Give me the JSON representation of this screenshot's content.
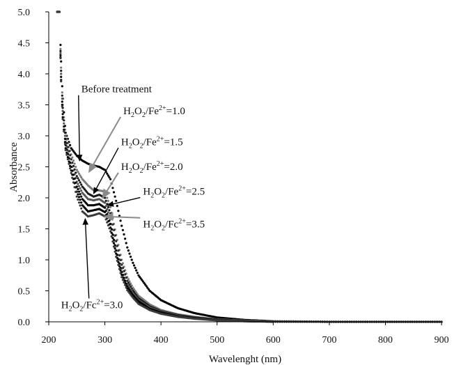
{
  "chart_data": {
    "type": "scatter",
    "title": "",
    "xlabel": "Wavelenght (nm)",
    "ylabel": "Absorbance",
    "xlim": [
      200,
      900
    ],
    "ylim": [
      0,
      5
    ],
    "xticks": [
      200,
      300,
      400,
      500,
      600,
      700,
      800,
      900
    ],
    "yticks": [
      0.0,
      0.5,
      1.0,
      1.5,
      2.0,
      2.5,
      3.0,
      3.5,
      4.0,
      4.5,
      5.0
    ],
    "grid": false,
    "legend": "none",
    "series": [
      {
        "label_ratio": "Before treatment",
        "color": "#000000",
        "points": [
          [
            215,
            5.0
          ],
          [
            219,
            5.0
          ],
          [
            222,
            4.2
          ],
          [
            225,
            3.6
          ],
          [
            230,
            3.05
          ],
          [
            240,
            2.8
          ],
          [
            250,
            2.68
          ],
          [
            260,
            2.6
          ],
          [
            270,
            2.55
          ],
          [
            280,
            2.52
          ],
          [
            290,
            2.5
          ],
          [
            300,
            2.45
          ],
          [
            310,
            2.3
          ],
          [
            320,
            1.95
          ],
          [
            330,
            1.55
          ],
          [
            340,
            1.2
          ],
          [
            350,
            0.95
          ],
          [
            360,
            0.75
          ],
          [
            380,
            0.5
          ],
          [
            400,
            0.35
          ],
          [
            430,
            0.22
          ],
          [
            460,
            0.14
          ],
          [
            500,
            0.07
          ],
          [
            550,
            0.03
          ],
          [
            600,
            0.01
          ],
          [
            700,
            0.0
          ],
          [
            900,
            0.0
          ]
        ]
      },
      {
        "label_ratio": "1.0",
        "color": "#7a7a7a",
        "points": [
          [
            215,
            5.0
          ],
          [
            219,
            5.0
          ],
          [
            222,
            4.1
          ],
          [
            225,
            3.5
          ],
          [
            230,
            3.0
          ],
          [
            240,
            2.7
          ],
          [
            250,
            2.45
          ],
          [
            260,
            2.3
          ],
          [
            270,
            2.2
          ],
          [
            280,
            2.12
          ],
          [
            290,
            2.12
          ],
          [
            300,
            2.1
          ],
          [
            310,
            1.85
          ],
          [
            320,
            1.4
          ],
          [
            330,
            1.0
          ],
          [
            340,
            0.72
          ],
          [
            350,
            0.55
          ],
          [
            360,
            0.42
          ],
          [
            380,
            0.28
          ],
          [
            400,
            0.19
          ],
          [
            430,
            0.12
          ],
          [
            460,
            0.08
          ],
          [
            500,
            0.04
          ],
          [
            550,
            0.02
          ],
          [
            600,
            0.01
          ],
          [
            700,
            0.0
          ],
          [
            900,
            0.0
          ]
        ]
      },
      {
        "label_ratio": "1.5",
        "color": "#1a1a1a",
        "points": [
          [
            215,
            5.0
          ],
          [
            219,
            5.0
          ],
          [
            222,
            4.05
          ],
          [
            225,
            3.45
          ],
          [
            230,
            2.95
          ],
          [
            240,
            2.62
          ],
          [
            250,
            2.35
          ],
          [
            260,
            2.18
          ],
          [
            270,
            2.07
          ],
          [
            280,
            2.02
          ],
          [
            290,
            2.05
          ],
          [
            300,
            2.0
          ],
          [
            310,
            1.75
          ],
          [
            320,
            1.3
          ],
          [
            330,
            0.92
          ],
          [
            340,
            0.66
          ],
          [
            350,
            0.5
          ],
          [
            360,
            0.38
          ],
          [
            380,
            0.25
          ],
          [
            400,
            0.17
          ],
          [
            430,
            0.11
          ],
          [
            460,
            0.07
          ],
          [
            500,
            0.035
          ],
          [
            550,
            0.015
          ],
          [
            600,
            0.005
          ],
          [
            700,
            0.0
          ],
          [
            900,
            0.0
          ]
        ]
      },
      {
        "label_ratio": "2.0",
        "color": "#555555",
        "points": [
          [
            215,
            5.0
          ],
          [
            219,
            5.0
          ],
          [
            222,
            4.0
          ],
          [
            225,
            3.4
          ],
          [
            230,
            2.9
          ],
          [
            240,
            2.56
          ],
          [
            250,
            2.26
          ],
          [
            260,
            2.08
          ],
          [
            270,
            1.98
          ],
          [
            280,
            1.96
          ],
          [
            290,
            1.98
          ],
          [
            300,
            1.92
          ],
          [
            310,
            1.66
          ],
          [
            320,
            1.22
          ],
          [
            330,
            0.86
          ],
          [
            340,
            0.61
          ],
          [
            350,
            0.46
          ],
          [
            360,
            0.35
          ],
          [
            380,
            0.23
          ],
          [
            400,
            0.16
          ],
          [
            430,
            0.1
          ],
          [
            460,
            0.065
          ],
          [
            500,
            0.03
          ],
          [
            550,
            0.013
          ],
          [
            600,
            0.004
          ],
          [
            700,
            0.0
          ],
          [
            900,
            0.0
          ]
        ]
      },
      {
        "label_ratio": "2.5",
        "color": "#000000",
        "points": [
          [
            215,
            5.0
          ],
          [
            219,
            5.0
          ],
          [
            222,
            3.95
          ],
          [
            225,
            3.35
          ],
          [
            230,
            2.85
          ],
          [
            240,
            2.5
          ],
          [
            250,
            2.18
          ],
          [
            260,
            1.98
          ],
          [
            270,
            1.88
          ],
          [
            280,
            1.88
          ],
          [
            290,
            1.9
          ],
          [
            300,
            1.84
          ],
          [
            310,
            1.58
          ],
          [
            320,
            1.15
          ],
          [
            330,
            0.8
          ],
          [
            340,
            0.57
          ],
          [
            350,
            0.43
          ],
          [
            360,
            0.33
          ],
          [
            380,
            0.21
          ],
          [
            400,
            0.15
          ],
          [
            430,
            0.09
          ],
          [
            460,
            0.06
          ],
          [
            500,
            0.028
          ],
          [
            550,
            0.012
          ],
          [
            600,
            0.004
          ],
          [
            700,
            0.0
          ],
          [
            900,
            0.0
          ]
        ]
      },
      {
        "label_ratio": "3.0",
        "color": "#000000",
        "points": [
          [
            215,
            5.0
          ],
          [
            219,
            5.0
          ],
          [
            222,
            3.9
          ],
          [
            225,
            3.3
          ],
          [
            230,
            2.8
          ],
          [
            240,
            2.44
          ],
          [
            250,
            2.1
          ],
          [
            260,
            1.88
          ],
          [
            270,
            1.78
          ],
          [
            280,
            1.8
          ],
          [
            290,
            1.82
          ],
          [
            300,
            1.77
          ],
          [
            310,
            1.52
          ],
          [
            320,
            1.1
          ],
          [
            330,
            0.76
          ],
          [
            340,
            0.54
          ],
          [
            350,
            0.41
          ],
          [
            360,
            0.31
          ],
          [
            380,
            0.2
          ],
          [
            400,
            0.14
          ],
          [
            430,
            0.085
          ],
          [
            460,
            0.055
          ],
          [
            500,
            0.026
          ],
          [
            550,
            0.011
          ],
          [
            600,
            0.003
          ],
          [
            700,
            0.0
          ],
          [
            900,
            0.0
          ]
        ]
      },
      {
        "label_ratio": "3.5",
        "color": "#3a3a3a",
        "points": [
          [
            215,
            5.0
          ],
          [
            219,
            5.0
          ],
          [
            222,
            3.88
          ],
          [
            225,
            3.27
          ],
          [
            230,
            2.77
          ],
          [
            240,
            2.4
          ],
          [
            250,
            2.02
          ],
          [
            260,
            1.78
          ],
          [
            270,
            1.7
          ],
          [
            280,
            1.72
          ],
          [
            290,
            1.75
          ],
          [
            300,
            1.7
          ],
          [
            310,
            1.46
          ],
          [
            320,
            1.05
          ],
          [
            330,
            0.72
          ],
          [
            340,
            0.51
          ],
          [
            350,
            0.39
          ],
          [
            360,
            0.29
          ],
          [
            380,
            0.19
          ],
          [
            400,
            0.13
          ],
          [
            430,
            0.08
          ],
          [
            460,
            0.05
          ],
          [
            500,
            0.024
          ],
          [
            550,
            0.01
          ],
          [
            600,
            0.003
          ],
          [
            700,
            0.0
          ],
          [
            900,
            0.0
          ]
        ]
      }
    ],
    "annotations": [
      {
        "type": "plain",
        "text": "Before treatment",
        "x": 258,
        "y": 3.7,
        "arrow_to": [
          255,
          2.6
        ],
        "arrow_color": "#000000"
      },
      {
        "type": "ratio",
        "pre": "H",
        "sub1": "2",
        "mid": "O",
        "sub2": "2",
        "post": "/Fe",
        "sup": "2+",
        "tail": "=1.0",
        "x": 333,
        "y": 3.35,
        "arrow_to": [
          272,
          2.42
        ],
        "arrow_color": "#8a8a8a"
      },
      {
        "type": "ratio",
        "pre": "H",
        "sub1": "2",
        "mid": "O",
        "sub2": "2",
        "post": "/Fe",
        "sup": "2+",
        "tail": "=1.5",
        "x": 329,
        "y": 2.85,
        "arrow_to": [
          280,
          2.07
        ],
        "arrow_color": "#000000"
      },
      {
        "type": "ratio",
        "pre": "H",
        "sub1": "2",
        "mid": "O",
        "sub2": "2",
        "post": "/Fe",
        "sup": "2+",
        "tail": "=2.0",
        "x": 329,
        "y": 2.45,
        "arrow_to": [
          296,
          2.0
        ],
        "arrow_color": "#8a8a8a"
      },
      {
        "type": "ratio",
        "pre": "H",
        "sub1": "2",
        "mid": "O",
        "sub2": "2",
        "post": "/Fe",
        "sup": "2+",
        "tail": "=2.5",
        "x": 368,
        "y": 2.05,
        "arrow_to": [
          305,
          1.88
        ],
        "arrow_color": "#000000"
      },
      {
        "type": "ratio",
        "pre": "H",
        "sub1": "2",
        "mid": "O",
        "sub2": "2",
        "post": "/Fc",
        "sup": "2+",
        "tail": "=3.5",
        "x": 368,
        "y": 1.52,
        "arrow_to": [
          300,
          1.7
        ],
        "arrow_color": "#8a8a8a"
      },
      {
        "type": "ratio",
        "pre": "H",
        "sub1": "2",
        "mid": "O",
        "sub2": "2",
        "post": "/Fc",
        "sup": "2+",
        "tail": "=3.0",
        "x": 222,
        "y": 0.22,
        "arrow_to": [
          265,
          1.66
        ],
        "arrow_color": "#000000"
      }
    ]
  }
}
